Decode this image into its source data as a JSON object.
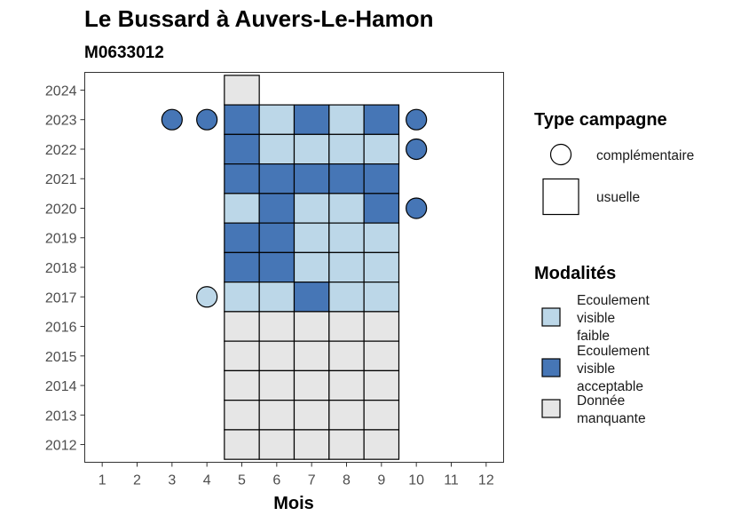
{
  "chart_data": {
    "type": "heatmap",
    "title": "Le Bussard à Auvers-Le-Hamon",
    "subtitle": "M0633012",
    "xlabel": "Mois",
    "ylabel": "",
    "x_ticks": [
      1,
      2,
      3,
      4,
      5,
      6,
      7,
      8,
      9,
      10,
      11,
      12
    ],
    "y_ticks": [
      2012,
      2013,
      2014,
      2015,
      2016,
      2017,
      2018,
      2019,
      2020,
      2021,
      2022,
      2023,
      2024
    ],
    "xlim": [
      0.5,
      12.5
    ],
    "ylim": [
      2011.4,
      2024.6
    ],
    "grid": false,
    "legend_placement": "right",
    "colors": {
      "faible": "#bcd7e8",
      "acceptable": "#4676b6",
      "manquante": "#e6e6e6",
      "stroke": "#000000"
    },
    "legend_type": {
      "title": "Type campagne",
      "entries": [
        {
          "shape": "circle",
          "label": "complémentaire"
        },
        {
          "shape": "square",
          "label": "usuelle"
        }
      ]
    },
    "legend_modalites": {
      "title": "Modalités",
      "entries": [
        {
          "key": "faible",
          "label_lines": [
            "Ecoulement",
            "visible",
            "faible"
          ]
        },
        {
          "key": "acceptable",
          "label_lines": [
            "Ecoulement",
            "visible",
            "acceptable"
          ]
        },
        {
          "key": "manquante",
          "label_lines": [
            "Donnée",
            "manquante"
          ]
        }
      ]
    },
    "usuelle": [
      {
        "year": 2024,
        "month": 5,
        "value": "manquante"
      },
      {
        "year": 2023,
        "month": 5,
        "value": "acceptable"
      },
      {
        "year": 2023,
        "month": 6,
        "value": "faible"
      },
      {
        "year": 2023,
        "month": 7,
        "value": "acceptable"
      },
      {
        "year": 2023,
        "month": 8,
        "value": "faible"
      },
      {
        "year": 2023,
        "month": 9,
        "value": "acceptable"
      },
      {
        "year": 2022,
        "month": 5,
        "value": "acceptable"
      },
      {
        "year": 2022,
        "month": 6,
        "value": "faible"
      },
      {
        "year": 2022,
        "month": 7,
        "value": "faible"
      },
      {
        "year": 2022,
        "month": 8,
        "value": "faible"
      },
      {
        "year": 2022,
        "month": 9,
        "value": "faible"
      },
      {
        "year": 2021,
        "month": 5,
        "value": "acceptable"
      },
      {
        "year": 2021,
        "month": 6,
        "value": "acceptable"
      },
      {
        "year": 2021,
        "month": 7,
        "value": "acceptable"
      },
      {
        "year": 2021,
        "month": 8,
        "value": "acceptable"
      },
      {
        "year": 2021,
        "month": 9,
        "value": "acceptable"
      },
      {
        "year": 2020,
        "month": 5,
        "value": "faible"
      },
      {
        "year": 2020,
        "month": 6,
        "value": "acceptable"
      },
      {
        "year": 2020,
        "month": 7,
        "value": "faible"
      },
      {
        "year": 2020,
        "month": 8,
        "value": "faible"
      },
      {
        "year": 2020,
        "month": 9,
        "value": "acceptable"
      },
      {
        "year": 2019,
        "month": 5,
        "value": "acceptable"
      },
      {
        "year": 2019,
        "month": 6,
        "value": "acceptable"
      },
      {
        "year": 2019,
        "month": 7,
        "value": "faible"
      },
      {
        "year": 2019,
        "month": 8,
        "value": "faible"
      },
      {
        "year": 2019,
        "month": 9,
        "value": "faible"
      },
      {
        "year": 2018,
        "month": 5,
        "value": "acceptable"
      },
      {
        "year": 2018,
        "month": 6,
        "value": "acceptable"
      },
      {
        "year": 2018,
        "month": 7,
        "value": "faible"
      },
      {
        "year": 2018,
        "month": 8,
        "value": "faible"
      },
      {
        "year": 2018,
        "month": 9,
        "value": "faible"
      },
      {
        "year": 2017,
        "month": 5,
        "value": "faible"
      },
      {
        "year": 2017,
        "month": 6,
        "value": "faible"
      },
      {
        "year": 2017,
        "month": 7,
        "value": "acceptable"
      },
      {
        "year": 2017,
        "month": 8,
        "value": "faible"
      },
      {
        "year": 2017,
        "month": 9,
        "value": "faible"
      },
      {
        "year": 2016,
        "month": 5,
        "value": "manquante"
      },
      {
        "year": 2016,
        "month": 6,
        "value": "manquante"
      },
      {
        "year": 2016,
        "month": 7,
        "value": "manquante"
      },
      {
        "year": 2016,
        "month": 8,
        "value": "manquante"
      },
      {
        "year": 2016,
        "month": 9,
        "value": "manquante"
      },
      {
        "year": 2015,
        "month": 5,
        "value": "manquante"
      },
      {
        "year": 2015,
        "month": 6,
        "value": "manquante"
      },
      {
        "year": 2015,
        "month": 7,
        "value": "manquante"
      },
      {
        "year": 2015,
        "month": 8,
        "value": "manquante"
      },
      {
        "year": 2015,
        "month": 9,
        "value": "manquante"
      },
      {
        "year": 2014,
        "month": 5,
        "value": "manquante"
      },
      {
        "year": 2014,
        "month": 6,
        "value": "manquante"
      },
      {
        "year": 2014,
        "month": 7,
        "value": "manquante"
      },
      {
        "year": 2014,
        "month": 8,
        "value": "manquante"
      },
      {
        "year": 2014,
        "month": 9,
        "value": "manquante"
      },
      {
        "year": 2013,
        "month": 5,
        "value": "manquante"
      },
      {
        "year": 2013,
        "month": 6,
        "value": "manquante"
      },
      {
        "year": 2013,
        "month": 7,
        "value": "manquante"
      },
      {
        "year": 2013,
        "month": 8,
        "value": "manquante"
      },
      {
        "year": 2013,
        "month": 9,
        "value": "manquante"
      },
      {
        "year": 2012,
        "month": 5,
        "value": "manquante"
      },
      {
        "year": 2012,
        "month": 6,
        "value": "manquante"
      },
      {
        "year": 2012,
        "month": 7,
        "value": "manquante"
      },
      {
        "year": 2012,
        "month": 8,
        "value": "manquante"
      },
      {
        "year": 2012,
        "month": 9,
        "value": "manquante"
      }
    ],
    "complementaire": [
      {
        "year": 2023,
        "month": 3,
        "value": "acceptable"
      },
      {
        "year": 2023,
        "month": 4,
        "value": "acceptable"
      },
      {
        "year": 2023,
        "month": 10,
        "value": "acceptable"
      },
      {
        "year": 2022,
        "month": 10,
        "value": "acceptable"
      },
      {
        "year": 2020,
        "month": 10,
        "value": "acceptable"
      },
      {
        "year": 2017,
        "month": 4,
        "value": "faible"
      }
    ]
  }
}
